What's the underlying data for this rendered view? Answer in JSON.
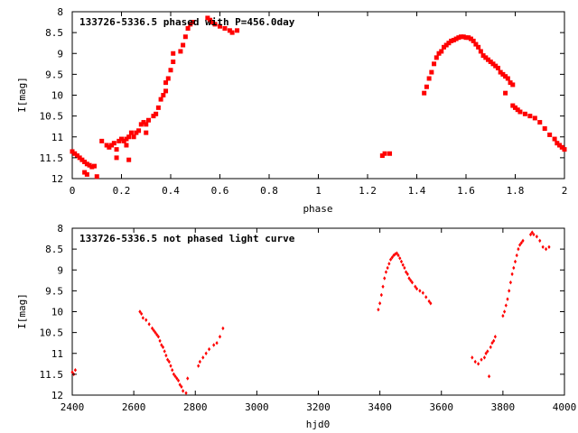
{
  "colors": {
    "points": "#ff0000",
    "axes": "#000000",
    "background": "#ffffff"
  },
  "chart_data": [
    {
      "type": "scatter",
      "title": "133726-5336.5 phased with P=456.0day",
      "xlabel": "phase",
      "ylabel": "I[mag]",
      "xlim": [
        0,
        2
      ],
      "ylim": [
        12,
        8
      ],
      "y_inverted": true,
      "grid": false,
      "marker": "filled-square",
      "xticks": [
        0,
        0.2,
        0.4,
        0.6,
        0.8,
        1,
        1.2,
        1.4,
        1.6,
        1.8,
        2
      ],
      "xtick_labels": [
        "0",
        "0.2",
        "0.4",
        "0.6",
        "0.8",
        "1",
        "1.2",
        "1.4",
        "1.6",
        "1.8",
        "2"
      ],
      "yticks": [
        8,
        8.5,
        9,
        9.5,
        10,
        10.5,
        11,
        11.5,
        12
      ],
      "ytick_labels": [
        "8",
        "8.5",
        "9",
        "9.5",
        "10",
        "10.5",
        "11",
        "11.5",
        "12"
      ],
      "series": [
        {
          "points": [
            [
              0.0,
              11.35
            ],
            [
              0.01,
              11.4
            ],
            [
              0.02,
              11.45
            ],
            [
              0.03,
              11.5
            ],
            [
              0.04,
              11.55
            ],
            [
              0.05,
              11.6
            ],
            [
              0.06,
              11.65
            ],
            [
              0.07,
              11.68
            ],
            [
              0.08,
              11.72
            ],
            [
              0.09,
              11.7
            ],
            [
              0.05,
              11.85
            ],
            [
              0.06,
              11.9
            ],
            [
              0.1,
              11.95
            ],
            [
              0.12,
              11.1
            ],
            [
              0.14,
              11.2
            ],
            [
              0.15,
              11.25
            ],
            [
              0.16,
              11.2
            ],
            [
              0.17,
              11.15
            ],
            [
              0.18,
              11.3
            ],
            [
              0.19,
              11.1
            ],
            [
              0.2,
              11.05
            ],
            [
              0.21,
              11.1
            ],
            [
              0.22,
              11.05
            ],
            [
              0.23,
              11.0
            ],
            [
              0.24,
              10.9
            ],
            [
              0.25,
              11.0
            ],
            [
              0.26,
              10.9
            ],
            [
              0.27,
              10.85
            ],
            [
              0.28,
              10.7
            ],
            [
              0.29,
              10.65
            ],
            [
              0.3,
              10.7
            ],
            [
              0.31,
              10.6
            ],
            [
              0.18,
              11.5
            ],
            [
              0.23,
              11.55
            ],
            [
              0.22,
              11.2
            ],
            [
              0.3,
              10.9
            ],
            [
              0.33,
              10.5
            ],
            [
              0.34,
              10.45
            ],
            [
              0.35,
              10.3
            ],
            [
              0.36,
              10.1
            ],
            [
              0.37,
              10.0
            ],
            [
              0.38,
              9.9
            ],
            [
              0.38,
              9.7
            ],
            [
              0.39,
              9.6
            ],
            [
              0.4,
              9.4
            ],
            [
              0.41,
              9.2
            ],
            [
              0.41,
              9.0
            ],
            [
              0.44,
              8.95
            ],
            [
              0.45,
              8.8
            ],
            [
              0.46,
              8.6
            ],
            [
              0.47,
              8.4
            ],
            [
              0.48,
              8.3
            ],
            [
              0.49,
              8.25
            ],
            [
              0.55,
              8.15
            ],
            [
              0.56,
              8.2
            ],
            [
              0.57,
              8.25
            ],
            [
              0.58,
              8.3
            ],
            [
              0.6,
              8.35
            ],
            [
              0.62,
              8.4
            ],
            [
              0.64,
              8.45
            ],
            [
              0.65,
              8.5
            ],
            [
              0.67,
              8.45
            ],
            [
              1.26,
              11.45
            ],
            [
              1.27,
              11.4
            ],
            [
              1.29,
              11.4
            ],
            [
              1.43,
              9.95
            ],
            [
              1.44,
              9.8
            ],
            [
              1.45,
              9.6
            ],
            [
              1.46,
              9.45
            ],
            [
              1.47,
              9.25
            ],
            [
              1.48,
              9.1
            ],
            [
              1.49,
              9.0
            ],
            [
              1.5,
              8.95
            ],
            [
              1.51,
              8.85
            ],
            [
              1.52,
              8.8
            ],
            [
              1.53,
              8.75
            ],
            [
              1.54,
              8.7
            ],
            [
              1.55,
              8.68
            ],
            [
              1.56,
              8.65
            ],
            [
              1.57,
              8.62
            ],
            [
              1.58,
              8.6
            ],
            [
              1.59,
              8.6
            ],
            [
              1.6,
              8.62
            ],
            [
              1.61,
              8.62
            ],
            [
              1.62,
              8.65
            ],
            [
              1.63,
              8.7
            ],
            [
              1.64,
              8.78
            ],
            [
              1.65,
              8.85
            ],
            [
              1.66,
              8.95
            ],
            [
              1.67,
              9.05
            ],
            [
              1.68,
              9.1
            ],
            [
              1.69,
              9.15
            ],
            [
              1.7,
              9.2
            ],
            [
              1.71,
              9.25
            ],
            [
              1.72,
              9.3
            ],
            [
              1.73,
              9.35
            ],
            [
              1.74,
              9.45
            ],
            [
              1.75,
              9.5
            ],
            [
              1.76,
              9.55
            ],
            [
              1.77,
              9.6
            ],
            [
              1.78,
              9.7
            ],
            [
              1.79,
              9.75
            ],
            [
              1.76,
              9.95
            ],
            [
              1.79,
              10.25
            ],
            [
              1.8,
              10.3
            ],
            [
              1.81,
              10.35
            ],
            [
              1.82,
              10.4
            ],
            [
              1.84,
              10.45
            ],
            [
              1.86,
              10.5
            ],
            [
              1.88,
              10.55
            ],
            [
              1.9,
              10.65
            ],
            [
              1.92,
              10.8
            ],
            [
              1.94,
              10.95
            ],
            [
              1.96,
              11.05
            ],
            [
              1.97,
              11.15
            ],
            [
              1.98,
              11.2
            ],
            [
              1.99,
              11.25
            ],
            [
              2.0,
              11.3
            ]
          ]
        }
      ]
    },
    {
      "type": "scatter",
      "title": "133726-5336.5 not phased light curve",
      "xlabel": "hjd0",
      "ylabel": "I[mag]",
      "xlim": [
        2400,
        4000
      ],
      "ylim": [
        12,
        8
      ],
      "y_inverted": true,
      "grid": false,
      "marker": "small-diamond",
      "xticks": [
        2400,
        2600,
        2800,
        3000,
        3200,
        3400,
        3600,
        3800,
        4000
      ],
      "xtick_labels": [
        "2400",
        "2600",
        "2800",
        "3000",
        "3200",
        "3400",
        "3600",
        "3800",
        "4000"
      ],
      "yticks": [
        8,
        8.5,
        9,
        9.5,
        10,
        10.5,
        11,
        11.5,
        12
      ],
      "ytick_labels": [
        "8",
        "8.5",
        "9",
        "9.5",
        "10",
        "10.5",
        "11",
        "11.5",
        "12"
      ],
      "series": [
        {
          "points": [
            [
              2400,
              11.45
            ],
            [
              2405,
              11.5
            ],
            [
              2410,
              11.4
            ],
            [
              2620,
              10.0
            ],
            [
              2625,
              10.05
            ],
            [
              2630,
              10.15
            ],
            [
              2640,
              10.2
            ],
            [
              2650,
              10.3
            ],
            [
              2660,
              10.4
            ],
            [
              2665,
              10.45
            ],
            [
              2670,
              10.5
            ],
            [
              2675,
              10.55
            ],
            [
              2680,
              10.6
            ],
            [
              2685,
              10.7
            ],
            [
              2690,
              10.8
            ],
            [
              2695,
              10.85
            ],
            [
              2700,
              10.95
            ],
            [
              2705,
              11.05
            ],
            [
              2710,
              11.15
            ],
            [
              2715,
              11.2
            ],
            [
              2720,
              11.3
            ],
            [
              2725,
              11.4
            ],
            [
              2730,
              11.5
            ],
            [
              2735,
              11.55
            ],
            [
              2740,
              11.6
            ],
            [
              2745,
              11.65
            ],
            [
              2750,
              11.75
            ],
            [
              2755,
              11.8
            ],
            [
              2760,
              11.9
            ],
            [
              2770,
              11.95
            ],
            [
              2775,
              11.6
            ],
            [
              2810,
              11.3
            ],
            [
              2815,
              11.2
            ],
            [
              2825,
              11.1
            ],
            [
              2835,
              11.0
            ],
            [
              2845,
              10.9
            ],
            [
              2860,
              10.8
            ],
            [
              2870,
              10.75
            ],
            [
              2880,
              10.6
            ],
            [
              2890,
              10.4
            ],
            [
              3395,
              9.95
            ],
            [
              3400,
              9.8
            ],
            [
              3405,
              9.6
            ],
            [
              3410,
              9.4
            ],
            [
              3415,
              9.2
            ],
            [
              3420,
              9.05
            ],
            [
              3425,
              8.95
            ],
            [
              3430,
              8.85
            ],
            [
              3435,
              8.75
            ],
            [
              3440,
              8.7
            ],
            [
              3445,
              8.65
            ],
            [
              3450,
              8.62
            ],
            [
              3455,
              8.6
            ],
            [
              3460,
              8.65
            ],
            [
              3465,
              8.72
            ],
            [
              3470,
              8.8
            ],
            [
              3475,
              8.88
            ],
            [
              3480,
              8.95
            ],
            [
              3485,
              9.05
            ],
            [
              3490,
              9.1
            ],
            [
              3495,
              9.2
            ],
            [
              3500,
              9.25
            ],
            [
              3505,
              9.3
            ],
            [
              3515,
              9.4
            ],
            [
              3520,
              9.45
            ],
            [
              3530,
              9.5
            ],
            [
              3540,
              9.55
            ],
            [
              3550,
              9.65
            ],
            [
              3560,
              9.75
            ],
            [
              3565,
              9.8
            ],
            [
              3700,
              11.1
            ],
            [
              3710,
              11.2
            ],
            [
              3720,
              11.25
            ],
            [
              3730,
              11.15
            ],
            [
              3740,
              11.1
            ],
            [
              3745,
              11.0
            ],
            [
              3750,
              10.95
            ],
            [
              3755,
              11.55
            ],
            [
              3760,
              10.85
            ],
            [
              3765,
              10.75
            ],
            [
              3770,
              10.7
            ],
            [
              3775,
              10.6
            ],
            [
              3800,
              10.1
            ],
            [
              3805,
              10.0
            ],
            [
              3810,
              9.85
            ],
            [
              3815,
              9.7
            ],
            [
              3820,
              9.5
            ],
            [
              3825,
              9.3
            ],
            [
              3830,
              9.1
            ],
            [
              3835,
              8.95
            ],
            [
              3840,
              8.8
            ],
            [
              3845,
              8.65
            ],
            [
              3850,
              8.5
            ],
            [
              3855,
              8.4
            ],
            [
              3860,
              8.35
            ],
            [
              3865,
              8.3
            ],
            [
              3890,
              8.15
            ],
            [
              3895,
              8.1
            ],
            [
              3900,
              8.15
            ],
            [
              3910,
              8.2
            ],
            [
              3920,
              8.3
            ],
            [
              3930,
              8.45
            ],
            [
              3940,
              8.5
            ],
            [
              3950,
              8.45
            ]
          ]
        }
      ]
    }
  ]
}
